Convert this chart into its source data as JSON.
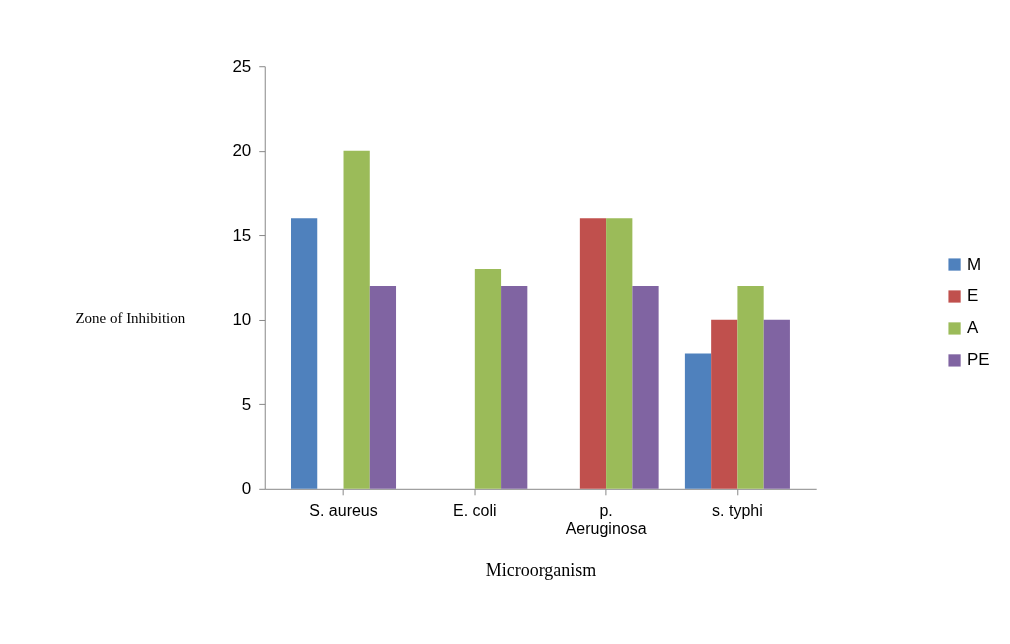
{
  "chart_data": {
    "type": "bar",
    "xlabel": "Microorganism",
    "ylabel": "Zone of Inhibition",
    "categories": [
      "S. aureus",
      "E. coli",
      "p. Aeruginosa",
      "s. typhi"
    ],
    "series": [
      {
        "name": "M",
        "color": "#4f81bd",
        "values": [
          16,
          0,
          0,
          8
        ]
      },
      {
        "name": "E",
        "color": "#c0504d",
        "values": [
          0,
          0,
          16,
          10
        ]
      },
      {
        "name": "A",
        "color": "#9bbb59",
        "values": [
          20,
          13,
          16,
          12
        ]
      },
      {
        "name": "PE",
        "color": "#8064a2",
        "values": [
          12,
          12,
          12,
          10
        ]
      }
    ],
    "ylim": [
      0,
      25
    ],
    "yticks": [
      0,
      5,
      10,
      15,
      20,
      25
    ],
    "grid": false,
    "legend": "right"
  }
}
